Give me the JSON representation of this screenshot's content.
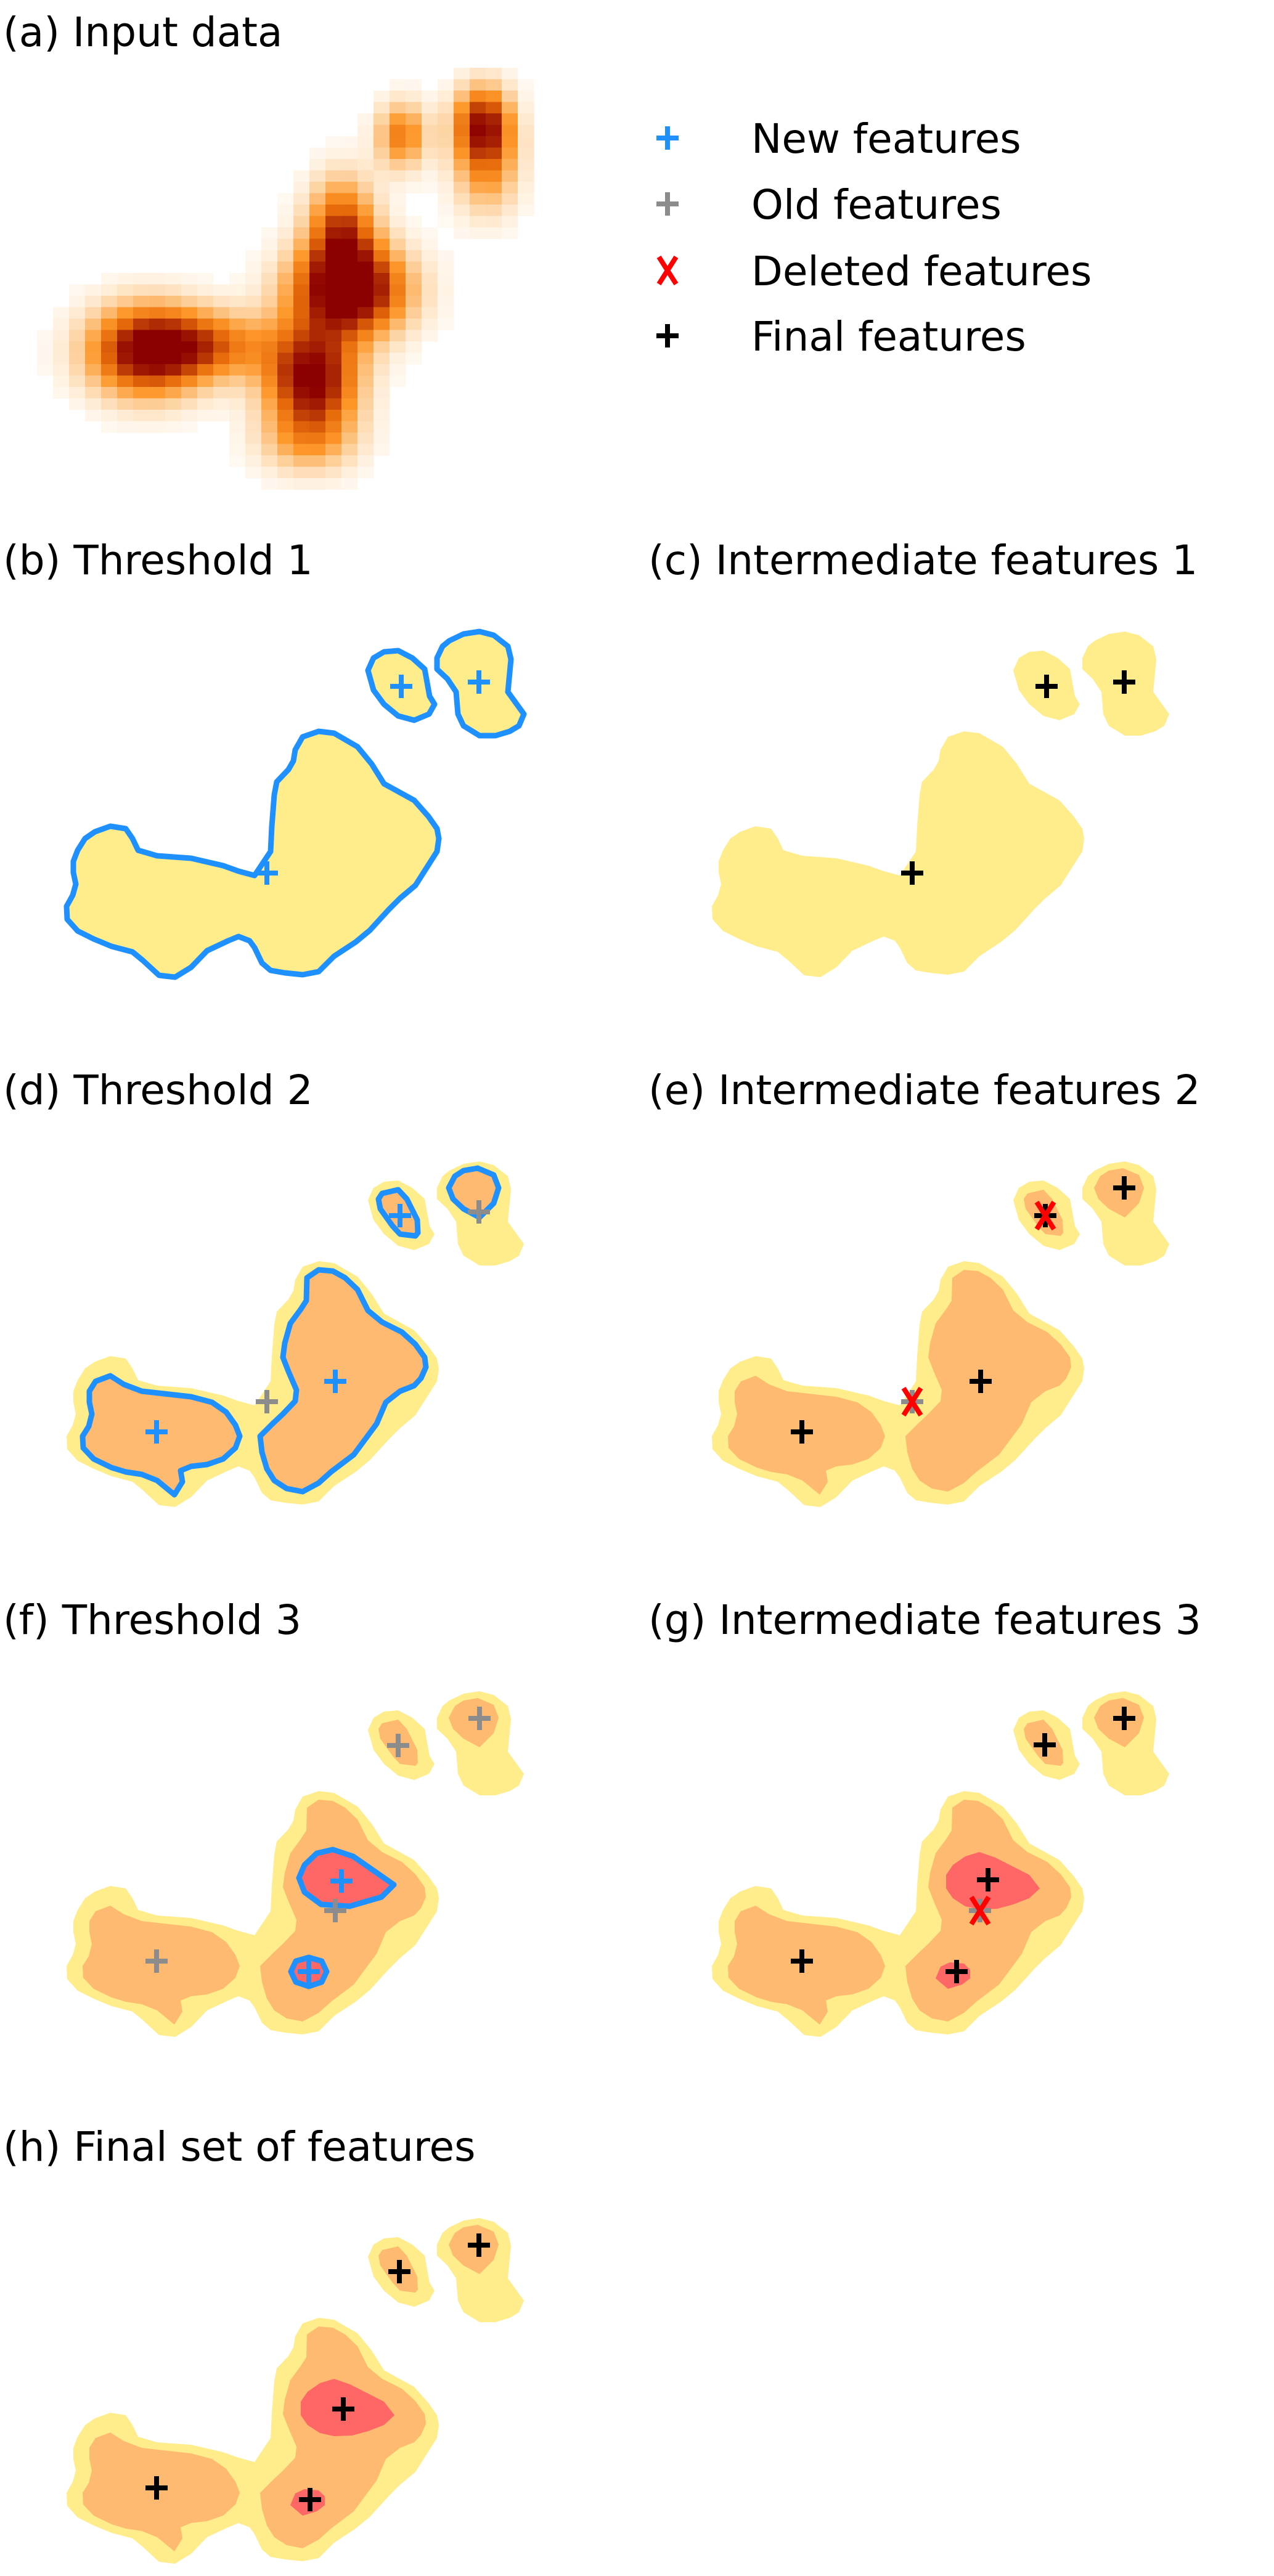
{
  "panels": {
    "a": "(a) Input data",
    "b": "(b) Threshold 1",
    "c": "(c) Intermediate features 1",
    "d": "(d) Threshold 2",
    "e": "(e) Intermediate features 2",
    "f": "(f) Threshold 3",
    "g": "(g) Intermediate features 3",
    "h": "(h) Final set of features"
  },
  "legend": [
    {
      "marker": "plus",
      "color": "#1e90ff",
      "label": "New features"
    },
    {
      "marker": "plus",
      "color": "#8c8c8c",
      "label": "Old features"
    },
    {
      "marker": "x",
      "color": "#ff0000",
      "label": "Deleted features"
    },
    {
      "marker": "plus",
      "color": "#000000",
      "label": "Final features"
    }
  ],
  "colors": {
    "level1": "#ffec8b",
    "level2": "#fdba70",
    "level3": "#ff6666",
    "contour": "#1e90ff"
  }
}
